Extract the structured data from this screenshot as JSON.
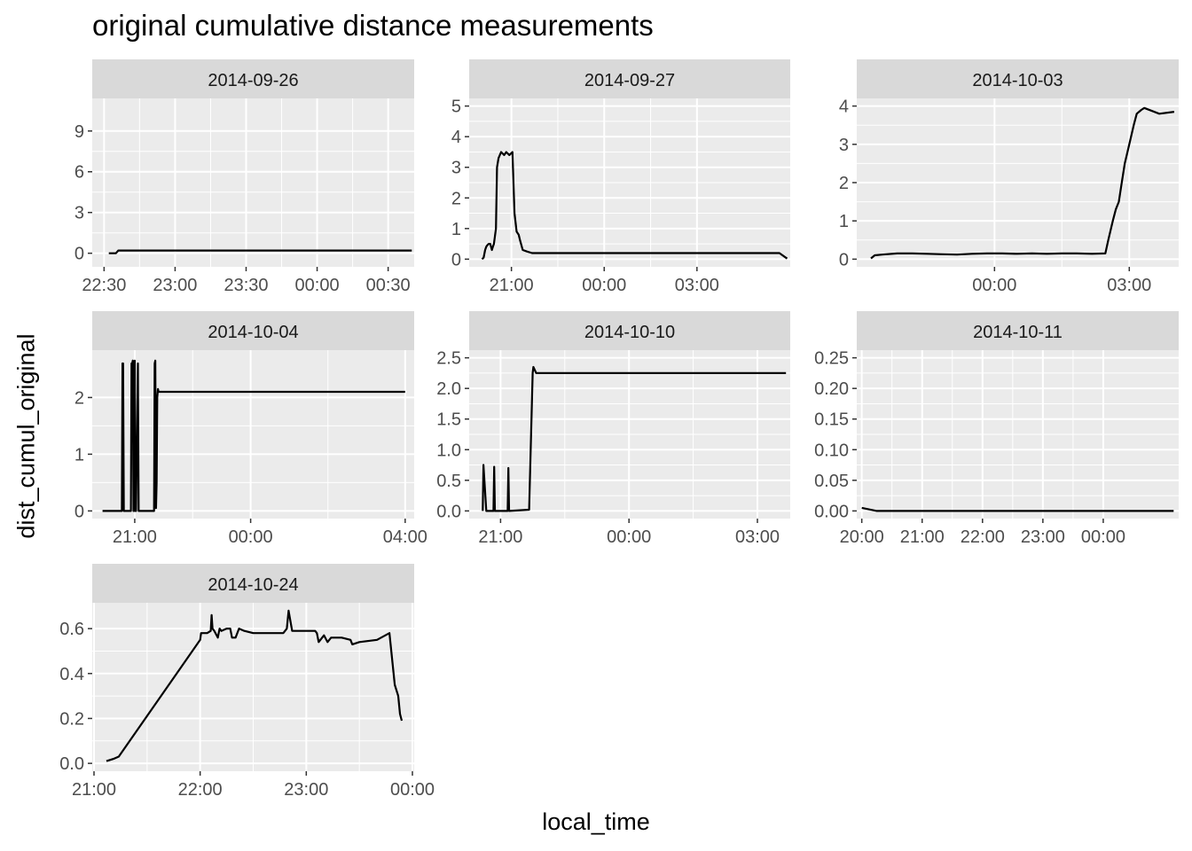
{
  "title": "original cumulative distance measurements",
  "xlabel": "local_time",
  "ylabel": "dist_cumul_original",
  "chart_data": [
    {
      "type": "line",
      "strip": "2014-09-26",
      "xlim": [
        1345,
        1481
      ],
      "ylim": [
        -1.0,
        11.4
      ],
      "xticks": [
        {
          "v": 1350,
          "label": "22:30"
        },
        {
          "v": 1380,
          "label": "23:00"
        },
        {
          "v": 1410,
          "label": "23:30"
        },
        {
          "v": 1440,
          "label": "00:00"
        },
        {
          "v": 1470,
          "label": "00:30"
        }
      ],
      "yticks": [
        {
          "v": 0,
          "label": "0"
        },
        {
          "v": 3,
          "label": "3"
        },
        {
          "v": 6,
          "label": "6"
        },
        {
          "v": 9,
          "label": "9"
        }
      ],
      "x": [
        1352.0,
        1355.0,
        1356.0,
        1377.0,
        1380.0,
        1386.0,
        1400.0,
        1410.0,
        1415.0,
        1418.0,
        1419.0,
        1420.0,
        1421.0,
        1423.0,
        1424.0,
        1425.0,
        1426.0,
        1427.0,
        1428.0,
        1430.0,
        1432.0,
        1434.0,
        1436.0,
        1441.0,
        1443.0,
        1450.0,
        1454.0,
        1455.0,
        1456.0,
        1458.0,
        1470.0,
        1474.0,
        1476.0,
        1477.0,
        1478.0,
        1479.0,
        1480.0
      ],
      "y": [
        0.0,
        0.0,
        0.2,
        0.2,
        0.2,
        0.2,
        0.2,
        0.2,
        0.2,
        0.2,
        0.2,
        0.2,
        0.2,
        0.2,
        0.2,
        0.2,
        0.2,
        0.2,
        0.2,
        0.2,
        0.2,
        0.2,
        0.2,
        0.2,
        0.2,
        0.2,
        0.2,
        0.2,
        0.2,
        0.2,
        0.2,
        0.2,
        0.2,
        0.2,
        0.2,
        0.2,
        0.2
      ]
    },
    {
      "type": "line",
      "strip": "2014-09-27",
      "xlim": [
        1178,
        1801
      ],
      "ylim": [
        -0.25,
        5.25
      ],
      "xticks": [
        {
          "v": 1260,
          "label": "21:00"
        },
        {
          "v": 1440,
          "label": "00:00"
        },
        {
          "v": 1620,
          "label": "03:00"
        }
      ],
      "yticks": [
        {
          "v": 0,
          "label": "0"
        },
        {
          "v": 1,
          "label": "1"
        },
        {
          "v": 2,
          "label": "2"
        },
        {
          "v": 3,
          "label": "3"
        },
        {
          "v": 4,
          "label": "4"
        },
        {
          "v": 5,
          "label": "5"
        }
      ],
      "x": [
        1203,
        1206,
        1209,
        1211,
        1213,
        1216,
        1219,
        1222,
        1224,
        1226,
        1230,
        1232,
        1235,
        1240,
        1246,
        1250,
        1256,
        1262,
        1266,
        1270,
        1274,
        1277,
        1282,
        1290,
        1300,
        1310,
        1320,
        1330,
        1340,
        1350,
        1360,
        1380,
        1400,
        1420,
        1440,
        1460,
        1480,
        1500,
        1520,
        1540,
        1560,
        1580,
        1600,
        1620,
        1640,
        1660,
        1680,
        1700,
        1720,
        1740,
        1760,
        1780,
        1795
      ],
      "y": [
        0.0,
        0.05,
        0.3,
        0.4,
        0.45,
        0.5,
        0.5,
        0.3,
        0.4,
        0.5,
        1.0,
        3.0,
        3.3,
        3.5,
        3.4,
        3.5,
        3.4,
        3.5,
        1.5,
        0.9,
        0.8,
        0.6,
        0.3,
        0.25,
        0.2,
        0.2,
        0.2,
        0.2,
        0.2,
        0.2,
        0.2,
        0.2,
        0.2,
        0.2,
        0.2,
        0.2,
        0.2,
        0.2,
        0.2,
        0.2,
        0.2,
        0.2,
        0.2,
        0.2,
        0.2,
        0.2,
        0.2,
        0.2,
        0.2,
        0.2,
        0.2,
        0.2,
        0.02
      ]
    },
    {
      "type": "line",
      "strip": "2014-10-03",
      "xlim": [
        1256,
        1686
      ],
      "ylim": [
        -0.2,
        4.2
      ],
      "xticks": [
        {
          "v": 1440,
          "label": "00:00"
        },
        {
          "v": 1620,
          "label": "03:00"
        }
      ],
      "yticks": [
        {
          "v": 0,
          "label": "0"
        },
        {
          "v": 1,
          "label": "1"
        },
        {
          "v": 2,
          "label": "2"
        },
        {
          "v": 3,
          "label": "3"
        },
        {
          "v": 4,
          "label": "4"
        }
      ],
      "x": [
        1275,
        1280,
        1290,
        1310,
        1330,
        1350,
        1370,
        1390,
        1410,
        1430,
        1450,
        1470,
        1490,
        1510,
        1530,
        1550,
        1570,
        1588,
        1592,
        1598,
        1602,
        1606,
        1610,
        1614,
        1620,
        1626,
        1630,
        1636,
        1640,
        1660,
        1680
      ],
      "y": [
        0.02,
        0.1,
        0.12,
        0.15,
        0.15,
        0.14,
        0.13,
        0.12,
        0.14,
        0.15,
        0.15,
        0.14,
        0.15,
        0.14,
        0.15,
        0.15,
        0.14,
        0.15,
        0.5,
        1.0,
        1.3,
        1.5,
        2.0,
        2.5,
        3.0,
        3.5,
        3.8,
        3.9,
        3.95,
        3.8,
        3.85
      ]
    },
    {
      "type": "line",
      "strip": "2014-10-04",
      "xlim": [
        1194,
        1694
      ],
      "ylim": [
        -0.135,
        2.835
      ],
      "xticks": [
        {
          "v": 1260,
          "label": "21:00"
        },
        {
          "v": 1440,
          "label": "00:00"
        },
        {
          "v": 1680,
          "label": "04:00"
        }
      ],
      "yticks": [
        {
          "v": 0,
          "label": "0"
        },
        {
          "v": 1,
          "label": "1"
        },
        {
          "v": 2,
          "label": "2"
        }
      ],
      "x": [
        1210,
        1212,
        1240,
        1241,
        1242,
        1243,
        1244,
        1254,
        1255,
        1256,
        1257,
        1258,
        1259,
        1260,
        1261,
        1262,
        1265,
        1266,
        1267,
        1290,
        1291,
        1292,
        1293,
        1294,
        1295,
        1296,
        1297,
        1298,
        1300,
        1320,
        1340,
        1360,
        1380,
        1398,
        1400,
        1402,
        1420,
        1440,
        1460,
        1480,
        1498,
        1500,
        1502,
        1520,
        1540,
        1560,
        1580,
        1600,
        1620,
        1640,
        1660,
        1680
      ],
      "y": [
        0.0,
        0.0,
        0.0,
        2.6,
        2.6,
        0.0,
        0.0,
        0.0,
        2.6,
        2.6,
        2.65,
        0.0,
        0.0,
        2.65,
        0.0,
        0.0,
        2.6,
        0.0,
        0.0,
        0.0,
        2.6,
        2.65,
        0.05,
        0.5,
        2.0,
        2.15,
        2.1,
        2.1,
        2.1,
        2.1,
        2.1,
        2.1,
        2.1,
        2.1,
        2.1,
        2.1,
        2.1,
        2.1,
        2.1,
        2.1,
        2.1,
        2.1,
        2.1,
        2.1,
        2.1,
        2.1,
        2.1,
        2.1,
        2.1,
        2.1,
        2.1,
        2.1
      ]
    },
    {
      "type": "line",
      "strip": "2014-10-10",
      "xlim": [
        1216,
        1666
      ],
      "ylim": [
        -0.125,
        2.625
      ],
      "xticks": [
        {
          "v": 1260,
          "label": "21:00"
        },
        {
          "v": 1440,
          "label": "00:00"
        },
        {
          "v": 1620,
          "label": "03:00"
        }
      ],
      "yticks": [
        {
          "v": 0,
          "label": "0.0"
        },
        {
          "v": 0.5,
          "label": "0.5"
        },
        {
          "v": 1.0,
          "label": "1.0"
        },
        {
          "v": 1.5,
          "label": "1.5"
        },
        {
          "v": 2.0,
          "label": "2.0"
        },
        {
          "v": 2.5,
          "label": "2.5"
        }
      ],
      "x": [
        1235,
        1236,
        1240,
        1241,
        1242,
        1250,
        1251,
        1252,
        1270,
        1271,
        1272,
        1300,
        1305,
        1306,
        1308,
        1310,
        1320,
        1340,
        1360,
        1380,
        1400,
        1420,
        1440,
        1460,
        1480,
        1500,
        1520,
        1540,
        1560,
        1580,
        1600,
        1620,
        1640,
        1660
      ],
      "y": [
        0.0,
        0.75,
        0.0,
        0.0,
        0.0,
        0.0,
        0.72,
        0.0,
        0.0,
        0.7,
        0.0,
        0.02,
        2.25,
        2.35,
        2.3,
        2.25,
        2.25,
        2.25,
        2.25,
        2.25,
        2.25,
        2.25,
        2.25,
        2.25,
        2.25,
        2.25,
        2.25,
        2.25,
        2.25,
        2.25,
        2.25,
        2.25,
        2.25,
        2.25
      ]
    },
    {
      "type": "line",
      "strip": "2014-10-11",
      "xlim": [
        1195,
        1515
      ],
      "ylim": [
        -0.0125,
        0.2625
      ],
      "xticks": [
        {
          "v": 1200,
          "label": "20:00"
        },
        {
          "v": 1260,
          "label": "21:00"
        },
        {
          "v": 1320,
          "label": "22:00"
        },
        {
          "v": 1380,
          "label": "23:00"
        },
        {
          "v": 1440,
          "label": "00:00"
        }
      ],
      "yticks": [
        {
          "v": 0,
          "label": "0.00"
        },
        {
          "v": 0.05,
          "label": "0.05"
        },
        {
          "v": 0.1,
          "label": "0.10"
        },
        {
          "v": 0.15,
          "label": "0.15"
        },
        {
          "v": 0.2,
          "label": "0.20"
        },
        {
          "v": 0.25,
          "label": "0.25"
        }
      ],
      "x": [
        1200,
        1215,
        1220,
        1222,
        1224,
        1226,
        1228,
        1230,
        1232,
        1234,
        1236,
        1240,
        1246,
        1250,
        1256,
        1262,
        1266,
        1270,
        1276,
        1280,
        1286,
        1290,
        1296,
        1300,
        1302,
        1304,
        1306,
        1308,
        1312,
        1316,
        1320,
        1322,
        1324,
        1326,
        1328,
        1330,
        1336,
        1340,
        1346,
        1350,
        1352,
        1354,
        1356,
        1360,
        1366,
        1370,
        1376,
        1380,
        1386,
        1390,
        1396,
        1400,
        1406,
        1410,
        1416,
        1420,
        1426,
        1430,
        1436,
        1440,
        1446,
        1450,
        1456,
        1460,
        1466,
        1470,
        1476,
        1480,
        1486,
        1490,
        1496,
        1500,
        1506,
        1510
      ],
      "y": [
        0.005,
        0.0,
        0.0,
        0.0,
        0.0,
        0.0,
        0.0,
        0.0,
        0.0,
        0.0,
        0.0,
        0.0,
        0.0,
        0.0,
        0.0,
        0.0,
        0.0,
        0.0,
        0.0,
        0.0,
        0.0,
        0.0,
        0.0,
        0.0,
        0.0,
        0.0,
        0.0,
        0.0,
        0.0,
        0.0,
        0.0,
        0.0,
        0.0,
        0.0,
        0.0,
        0.0,
        0.0,
        0.0,
        0.0,
        0.0,
        0.0,
        0.0,
        0.0,
        0.0,
        0.0,
        0.0,
        0.0,
        0.0,
        0.0,
        0.0,
        0.0,
        0.0,
        0.0,
        0.0,
        0.0,
        0.0,
        0.0,
        0.0,
        0.0,
        0.0,
        0.0,
        0.0,
        0.0,
        0.0,
        0.0,
        0.0,
        0.0,
        0.0,
        0.0,
        0.0,
        0.0,
        0.0,
        0.0,
        0.0
      ]
    },
    {
      "type": "line",
      "strip": "2014-10-24",
      "xlim": [
        1259,
        1441
      ],
      "ylim": [
        -0.035,
        0.715
      ],
      "xticks": [
        {
          "v": 1260,
          "label": "21:00"
        },
        {
          "v": 1320,
          "label": "22:00"
        },
        {
          "v": 1380,
          "label": "23:00"
        },
        {
          "v": 1440,
          "label": "00:00"
        }
      ],
      "yticks": [
        {
          "v": 0,
          "label": "0.0"
        },
        {
          "v": 0.2,
          "label": "0.2"
        },
        {
          "v": 0.4,
          "label": "0.4"
        },
        {
          "v": 0.6,
          "label": "0.6"
        }
      ],
      "x": [
        1267,
        1271,
        1274,
        1320,
        1320.5,
        1324,
        1326,
        1326.5,
        1327,
        1328,
        1330,
        1331,
        1332,
        1335,
        1337,
        1338,
        1340,
        1342,
        1345,
        1350,
        1360,
        1366,
        1367,
        1368,
        1369,
        1370,
        1372,
        1373,
        1375,
        1380,
        1385,
        1386,
        1387,
        1390,
        1392,
        1394,
        1400,
        1405,
        1406,
        1410,
        1420,
        1427,
        1430,
        1432,
        1433,
        1434
      ],
      "y": [
        0.01,
        0.02,
        0.03,
        0.55,
        0.58,
        0.58,
        0.59,
        0.66,
        0.6,
        0.59,
        0.56,
        0.6,
        0.59,
        0.6,
        0.6,
        0.56,
        0.56,
        0.6,
        0.59,
        0.58,
        0.58,
        0.58,
        0.58,
        0.59,
        0.6,
        0.68,
        0.59,
        0.59,
        0.59,
        0.59,
        0.59,
        0.58,
        0.54,
        0.57,
        0.54,
        0.56,
        0.56,
        0.55,
        0.53,
        0.54,
        0.55,
        0.58,
        0.35,
        0.3,
        0.22,
        0.19
      ]
    }
  ]
}
